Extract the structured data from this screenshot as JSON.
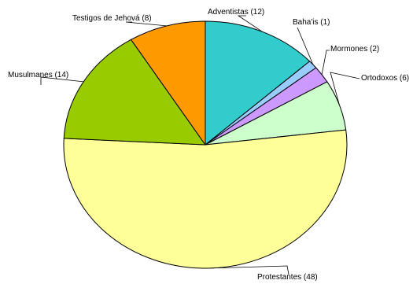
{
  "chart_data": {
    "type": "pie",
    "start_angle_deg": 0,
    "direction": "clockwise",
    "slices": [
      {
        "label": "Adventistas (12)",
        "category": "Adventistas",
        "value": 12,
        "color": "#33cccc"
      },
      {
        "label": "Baha'is (1)",
        "category": "Baha'is",
        "value": 1,
        "color": "#99ccff"
      },
      {
        "label": "Mormones (2)",
        "category": "Mormones",
        "value": 2,
        "color": "#cc99ff"
      },
      {
        "label": "Ortodoxos (6)",
        "category": "Ortodoxos",
        "value": 6,
        "color": "#ccffcc"
      },
      {
        "label": "Protestantes (48)",
        "category": "Protestantes",
        "value": 48,
        "color": "#ffff99"
      },
      {
        "label": "Musulmanes (14)",
        "category": "Musulmanes",
        "value": 14,
        "color": "#99cc00"
      },
      {
        "label": "Testigos de Jehová (8)",
        "category": "Testigos de Jehová",
        "value": 8,
        "color": "#ff9900"
      }
    ]
  }
}
